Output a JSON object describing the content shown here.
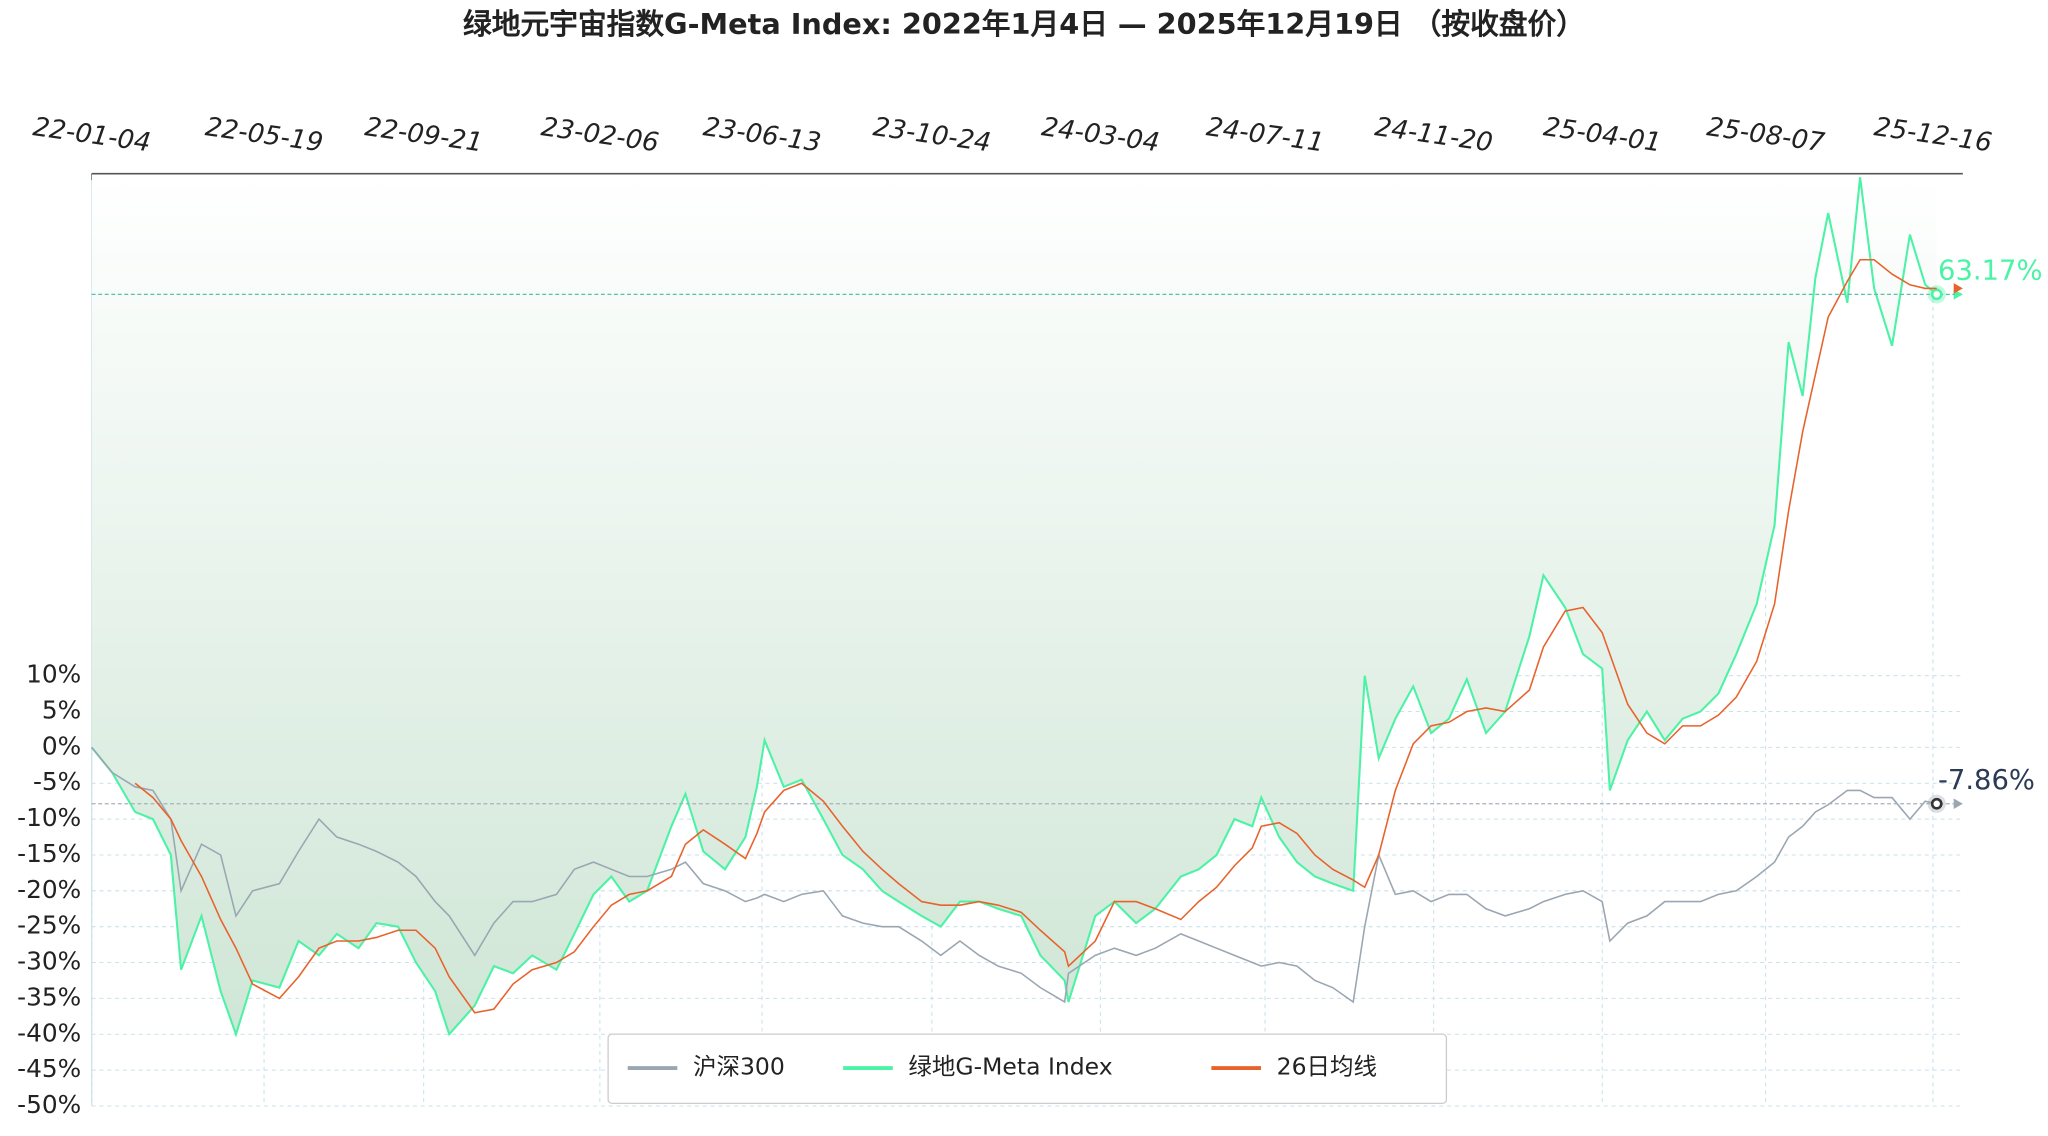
{
  "chart_data": {
    "type": "line",
    "title": "绿地元宇宙指数G-Meta Index:  2022年1月4日  —  2025年12月19日 （按收盘价）",
    "x": [
      "22-01-04",
      "22-01-20",
      "22-02-07",
      "22-02-21",
      "22-03-07",
      "22-03-15",
      "22-03-31",
      "22-04-15",
      "22-04-27",
      "22-05-10",
      "22-05-31",
      "22-06-15",
      "22-07-01",
      "22-07-15",
      "22-08-01",
      "22-08-15",
      "22-09-01",
      "22-09-15",
      "22-09-30",
      "22-10-11",
      "22-10-31",
      "22-11-15",
      "22-11-30",
      "22-12-15",
      "23-01-03",
      "23-01-17",
      "23-02-01",
      "23-02-15",
      "23-03-01",
      "23-03-15",
      "23-04-03",
      "23-04-14",
      "23-04-28",
      "23-05-15",
      "23-05-31",
      "23-06-09",
      "23-06-15",
      "23-06-30",
      "23-07-14",
      "23-07-31",
      "23-08-15",
      "23-08-31",
      "23-09-15",
      "23-09-28",
      "23-10-16",
      "23-10-31",
      "23-11-15",
      "23-11-30",
      "23-12-15",
      "24-01-02",
      "24-01-17",
      "24-02-05",
      "24-02-08",
      "24-02-29",
      "24-03-15",
      "24-04-01",
      "24-04-16",
      "24-05-06",
      "24-05-20",
      "24-06-03",
      "24-06-17",
      "24-07-01",
      "24-07-08",
      "24-07-22",
      "24-08-05",
      "24-08-19",
      "24-09-02",
      "24-09-18",
      "24-09-27",
      "24-10-08",
      "24-10-21",
      "24-11-04",
      "24-11-18",
      "24-12-02",
      "24-12-16",
      "24-12-31",
      "25-01-15",
      "25-02-03",
      "25-02-14",
      "25-03-03",
      "25-03-17",
      "25-04-01",
      "25-04-07",
      "25-04-21",
      "25-05-06",
      "25-05-20",
      "25-06-03",
      "25-06-17",
      "25-07-01",
      "25-07-15",
      "25-07-31",
      "25-08-14",
      "25-08-25",
      "25-09-05",
      "25-09-15",
      "25-09-25",
      "25-10-10",
      "25-10-20",
      "25-10-31",
      "25-11-14",
      "25-11-28",
      "25-12-10",
      "25-12-19"
    ],
    "xlim": [
      "22-01-04",
      "25-12-19"
    ],
    "xticks": [
      "22-01-04",
      "22-05-19",
      "22-09-21",
      "23-02-06",
      "23-06-13",
      "23-10-24",
      "24-03-04",
      "24-07-11",
      "24-11-20",
      "25-04-01",
      "25-08-07",
      "25-12-16"
    ],
    "ylim": [
      -50,
      80
    ],
    "yticks": [
      {
        "value": 10,
        "label": "10%"
      },
      {
        "value": 5,
        "label": "5%"
      },
      {
        "value": 0,
        "label": "0%"
      },
      {
        "value": -5,
        "label": "-5%"
      },
      {
        "value": -10,
        "label": "-10%"
      },
      {
        "value": -15,
        "label": "-15%"
      },
      {
        "value": -20,
        "label": "-20%"
      },
      {
        "value": -25,
        "label": "-25%"
      },
      {
        "value": -30,
        "label": "-30%"
      },
      {
        "value": -35,
        "label": "-35%"
      },
      {
        "value": -40,
        "label": "-40%"
      },
      {
        "value": -45,
        "label": "-45%"
      },
      {
        "value": -50,
        "label": "-50%"
      }
    ],
    "grid": true,
    "legend": "lower center",
    "series": [
      {
        "name": "沪深300",
        "color": "#9aa6b2",
        "end_label": "-7.86%",
        "values": [
          0,
          -3.5,
          -5.5,
          -6,
          -10,
          -20,
          -13.5,
          -15,
          -23.5,
          -20,
          -19,
          -14.5,
          -10,
          -12.5,
          -13.5,
          -14.5,
          -16,
          -18,
          -21.5,
          -23.5,
          -29,
          -24.5,
          -21.5,
          -21.5,
          -20.5,
          -17,
          -16,
          -17,
          -18,
          -18,
          -17,
          -16,
          -19,
          -20,
          -21.5,
          -21,
          -20.5,
          -21.5,
          -20.5,
          -20,
          -23.5,
          -24.5,
          -25,
          -25,
          -27,
          -29,
          -27,
          -29,
          -30.5,
          -31.5,
          -33.5,
          -35.5,
          -31.5,
          -29,
          -28,
          -29,
          -28,
          -26,
          -27,
          -28,
          -29,
          -30,
          -30.5,
          -30,
          -30.5,
          -32.5,
          -33.5,
          -35.5,
          -25,
          -15,
          -20.5,
          -20,
          -21.5,
          -20.5,
          -20.5,
          -22.5,
          -23.5,
          -22.5,
          -21.5,
          -20.5,
          -20,
          -21.5,
          -27,
          -24.5,
          -23.5,
          -21.5,
          -21.5,
          -21.5,
          -20.5,
          -20,
          -18,
          -16,
          -12.5,
          -11,
          -9,
          -8,
          -6,
          -6,
          -7,
          -7,
          -10,
          -7.5,
          -7.86
        ]
      },
      {
        "name": "绿地G-Meta Index",
        "color": "#4cf2a5",
        "end_label": "63.17%",
        "area": true,
        "values": [
          0,
          -3.5,
          -9,
          -10,
          -15,
          -31,
          -23.5,
          -34,
          -40,
          -32.5,
          -33.5,
          -27,
          -29,
          -26,
          -28,
          -24.5,
          -25,
          -30,
          -34,
          -40,
          -36,
          -30.5,
          -31.5,
          -29,
          -31,
          -26,
          -20.5,
          -18,
          -21.5,
          -20,
          -11,
          -6.5,
          -14.5,
          -17,
          -12.5,
          -5.5,
          1,
          -5.5,
          -4.5,
          -10,
          -15,
          -17,
          -20,
          -21.5,
          -23.5,
          -25,
          -21.5,
          -21.5,
          -22.5,
          -23.5,
          -29,
          -32.5,
          -35.5,
          -23.5,
          -21.5,
          -24.5,
          -22.5,
          -18,
          -17,
          -15,
          -10,
          -11,
          -7,
          -12.5,
          -16,
          -18,
          -19,
          -20,
          10,
          -1.5,
          4,
          8.5,
          2,
          4,
          9.5,
          2,
          5,
          15.5,
          24,
          19.5,
          13,
          11,
          -6,
          1,
          5,
          1,
          4,
          5,
          7.5,
          13,
          20,
          31,
          56.5,
          49,
          65.5,
          74.5,
          62,
          79.5,
          64,
          56,
          71.5,
          64.5,
          63.17
        ]
      },
      {
        "name": "26日均线",
        "color": "#e8622c",
        "values": [
          null,
          null,
          -5,
          -7,
          -10,
          -13,
          -18,
          -24,
          -28,
          -33,
          -35,
          -32,
          -28,
          -27,
          -27,
          -26.5,
          -25.5,
          -25.5,
          -28,
          -32,
          -37,
          -36.5,
          -33,
          -31,
          -30,
          -28.5,
          -25,
          -22,
          -20.5,
          -20,
          -18,
          -13.5,
          -11.5,
          -13.5,
          -15.5,
          -12,
          -9,
          -6,
          -5,
          -7.5,
          -11,
          -14.5,
          -17,
          -19,
          -21.5,
          -22,
          -22,
          -21.5,
          -22,
          -23,
          -25.5,
          -28.5,
          -30.5,
          -27,
          -21.5,
          -21.5,
          -22.5,
          -24,
          -21.5,
          -19.5,
          -16.5,
          -14,
          -11,
          -10.5,
          -12,
          -15,
          -17,
          -18.5,
          -19.5,
          -15,
          -6,
          0.5,
          3,
          3.5,
          5,
          5.5,
          5,
          8,
          14,
          19,
          19.5,
          16,
          13,
          6,
          2,
          0.5,
          3,
          3,
          4.5,
          7,
          12,
          20,
          33,
          44,
          52,
          60,
          65,
          68,
          68,
          66,
          64.5,
          64,
          64
        ]
      }
    ]
  }
}
